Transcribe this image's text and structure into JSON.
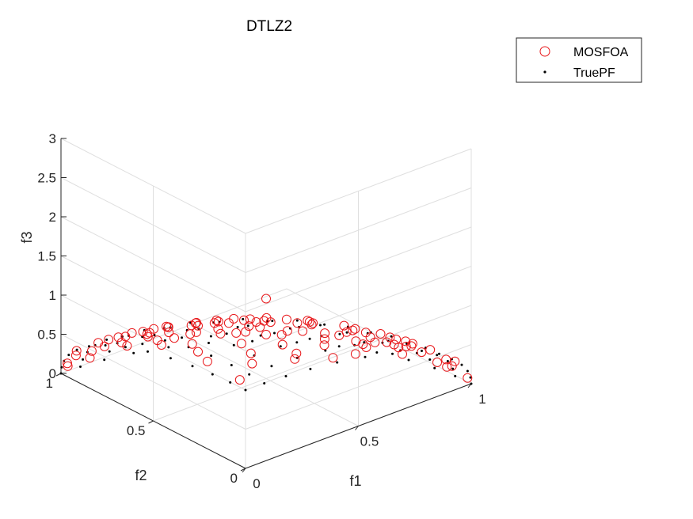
{
  "chart_data": {
    "type": "scatter",
    "title": "DTLZ2",
    "xlabel": "f1",
    "ylabel": "f2",
    "zlabel": "f3",
    "x_ticks": [
      "0",
      "0.5",
      "1"
    ],
    "y_ticks": [
      "0",
      "0.5",
      "1"
    ],
    "z_ticks": [
      "0",
      "0.5",
      "1",
      "1.5",
      "2",
      "2.5",
      "3"
    ],
    "xlim": [
      0,
      1
    ],
    "ylim": [
      0,
      1
    ],
    "zlim": [
      0,
      3
    ],
    "grid": true,
    "legend_position": "top-right",
    "colors": {
      "MOSFOA": "#e8181b",
      "TruePF": "#000000",
      "grid": "#dfdfdf",
      "axis": "#262626"
    },
    "series": [
      {
        "name": "MOSFOA",
        "marker": "circle-open",
        "points": [
          [
            0.5,
            0.5,
            1.02
          ],
          [
            0.12,
            0.98,
            0.18
          ],
          [
            0.26,
            0.96,
            0.12
          ],
          [
            0.38,
            0.92,
            0.05
          ],
          [
            0.03,
            1.0,
            0.06
          ],
          [
            0.1,
            0.92,
            0.38
          ],
          [
            0.2,
            0.86,
            0.47
          ],
          [
            0.32,
            0.82,
            0.47
          ],
          [
            0.42,
            0.78,
            0.46
          ],
          [
            0.52,
            0.7,
            0.5
          ],
          [
            0.6,
            0.62,
            0.52
          ],
          [
            0.7,
            0.52,
            0.5
          ],
          [
            0.78,
            0.42,
            0.47
          ],
          [
            0.86,
            0.32,
            0.4
          ],
          [
            0.92,
            0.22,
            0.33
          ],
          [
            0.97,
            0.1,
            0.22
          ],
          [
            1.0,
            0.02,
            0.05
          ],
          [
            0.98,
            0.16,
            0.1
          ],
          [
            0.94,
            0.3,
            0.08
          ],
          [
            0.88,
            0.44,
            0.1
          ],
          [
            0.8,
            0.55,
            0.12
          ],
          [
            0.7,
            0.66,
            0.15
          ],
          [
            0.58,
            0.76,
            0.18
          ],
          [
            0.45,
            0.85,
            0.2
          ],
          [
            0.32,
            0.92,
            0.22
          ],
          [
            0.16,
            0.96,
            0.22
          ],
          [
            0.05,
            0.98,
            0.2
          ],
          [
            0.08,
            0.84,
            0.54
          ],
          [
            0.18,
            0.74,
            0.64
          ],
          [
            0.3,
            0.66,
            0.7
          ],
          [
            0.4,
            0.58,
            0.72
          ],
          [
            0.52,
            0.5,
            0.7
          ],
          [
            0.62,
            0.4,
            0.68
          ],
          [
            0.72,
            0.3,
            0.62
          ],
          [
            0.82,
            0.22,
            0.52
          ],
          [
            0.9,
            0.1,
            0.42
          ],
          [
            0.96,
            0.04,
            0.28
          ],
          [
            0.24,
            0.56,
            0.8
          ],
          [
            0.36,
            0.44,
            0.82
          ],
          [
            0.48,
            0.36,
            0.8
          ],
          [
            0.58,
            0.28,
            0.76
          ],
          [
            0.7,
            0.18,
            0.7
          ],
          [
            0.8,
            0.08,
            0.6
          ],
          [
            0.1,
            0.6,
            0.8
          ],
          [
            0.14,
            0.46,
            0.88
          ],
          [
            0.26,
            0.34,
            0.9
          ],
          [
            0.36,
            0.24,
            0.9
          ],
          [
            0.48,
            0.16,
            0.86
          ],
          [
            0.6,
            0.08,
            0.8
          ],
          [
            0.06,
            0.28,
            0.96
          ],
          [
            0.16,
            0.16,
            0.97
          ],
          [
            0.3,
            0.1,
            0.95
          ],
          [
            0.42,
            0.04,
            0.91
          ],
          [
            0.04,
            0.08,
            0.99
          ],
          [
            0.72,
            0.6,
            0.35
          ],
          [
            0.62,
            0.7,
            0.35
          ],
          [
            0.5,
            0.78,
            0.37
          ],
          [
            0.36,
            0.86,
            0.37
          ],
          [
            0.22,
            0.92,
            0.33
          ],
          [
            0.84,
            0.48,
            0.25
          ],
          [
            0.92,
            0.36,
            0.18
          ],
          [
            0.66,
            0.46,
            0.6
          ],
          [
            0.54,
            0.56,
            0.62
          ],
          [
            0.42,
            0.66,
            0.62
          ],
          [
            0.28,
            0.76,
            0.58
          ],
          [
            0.76,
            0.62,
            0.18
          ],
          [
            0.62,
            0.74,
            0.25
          ],
          [
            0.46,
            0.82,
            0.33
          ],
          [
            0.3,
            0.9,
            0.3
          ],
          [
            0.9,
            0.4,
            0.15
          ],
          [
            0.96,
            0.22,
            0.18
          ],
          [
            0.74,
            0.54,
            0.4
          ],
          [
            0.56,
            0.66,
            0.5
          ],
          [
            0.4,
            0.76,
            0.5
          ],
          [
            0.2,
            0.8,
            0.56
          ],
          [
            0.86,
            0.4,
            0.32
          ],
          [
            0.94,
            0.28,
            0.2
          ],
          [
            0.98,
            0.08,
            0.15
          ],
          [
            0.02,
            0.94,
            0.34
          ],
          [
            0.04,
            0.72,
            0.69
          ],
          [
            0.1,
            0.38,
            0.92
          ],
          [
            0.22,
            0.24,
            0.94
          ],
          [
            0.34,
            0.14,
            0.93
          ],
          [
            0.52,
            0.04,
            0.85
          ],
          [
            0.62,
            0.16,
            0.76
          ],
          [
            0.74,
            0.1,
            0.66
          ],
          [
            0.84,
            0.16,
            0.52
          ],
          [
            0.44,
            0.46,
            0.77
          ],
          [
            0.32,
            0.54,
            0.78
          ],
          [
            0.2,
            0.66,
            0.72
          ],
          [
            0.68,
            0.72,
            0.1
          ],
          [
            0.56,
            0.82,
            0.12
          ],
          [
            0.42,
            0.9,
            0.12
          ],
          [
            0.84,
            0.52,
            0.16
          ],
          [
            0.94,
            0.32,
            0.14
          ],
          [
            0.99,
            0.12,
            0.08
          ],
          [
            0.12,
            0.99,
            0.08
          ],
          [
            0.02,
            0.99,
            0.12
          ],
          [
            0.78,
            0.36,
            0.5
          ],
          [
            0.5,
            0.62,
            0.6
          ],
          [
            0.28,
            0.84,
            0.46
          ],
          [
            0.64,
            0.56,
            0.53
          ],
          [
            0.46,
            0.72,
            0.52
          ],
          [
            0.88,
            0.26,
            0.38
          ],
          [
            0.14,
            0.86,
            0.48
          ]
        ]
      },
      {
        "name": "TruePF",
        "marker": "dot",
        "points": []
      }
    ]
  }
}
